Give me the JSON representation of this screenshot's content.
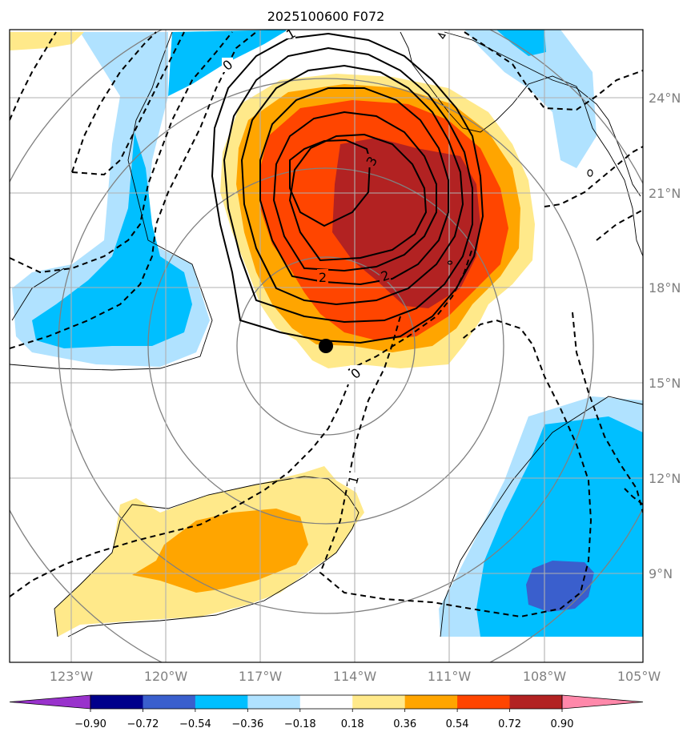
{
  "title": "2025100600 F072",
  "map": {
    "lon_labels": [
      "123°W",
      "120°W",
      "117°W",
      "114°W",
      "111°W",
      "108°W",
      "105°W"
    ],
    "lat_labels": [
      "24°N",
      "21°N",
      "18°N",
      "15°N",
      "12°N",
      "9°N"
    ],
    "contour_labels": [
      "1",
      "0",
      "3",
      "2",
      "2",
      "0",
      "1"
    ],
    "marker": "storm-center-dot"
  },
  "colorbar": {
    "ticks": [
      "−0.90",
      "−0.72",
      "−0.54",
      "−0.36",
      "−0.18",
      "0.18",
      "0.36",
      "0.54",
      "0.72",
      "0.90"
    ],
    "colors": [
      "#9932cc",
      "#00008b",
      "#3a5fcd",
      "#00bfff",
      "#b0e2ff",
      "#ffffff",
      "#ffe98a",
      "#ffa500",
      "#ff4500",
      "#b22222",
      "#ff88aa"
    ]
  },
  "colors": {
    "pos_1": "#ffe98a",
    "pos_2": "#ffa500",
    "pos_3": "#ff4500",
    "pos_4": "#b22222",
    "neg_1": "#b0e2ff",
    "neg_2": "#00bfff",
    "neg_3": "#3a5fcd"
  }
}
